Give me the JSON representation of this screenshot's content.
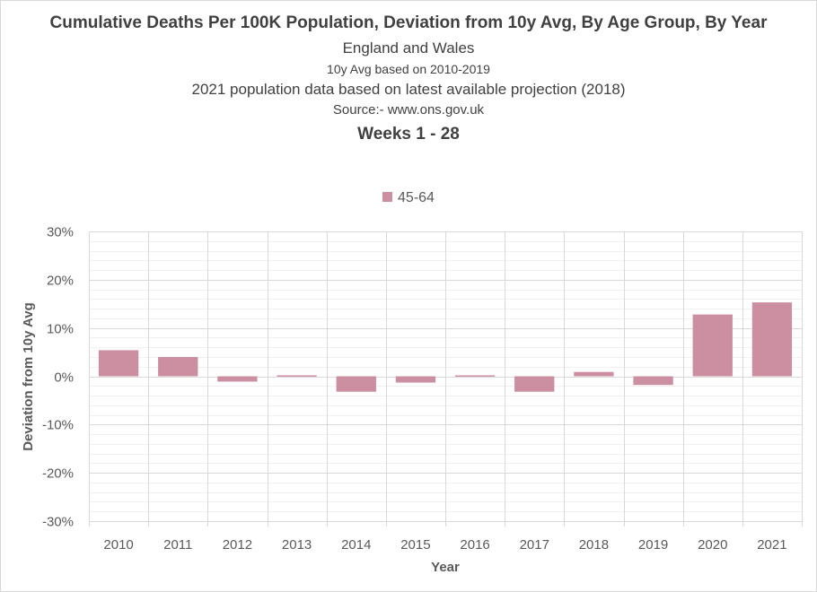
{
  "chart_data": {
    "type": "bar",
    "title": "Cumulative Deaths Per 100K Population, Deviation from 10y Avg, By Age Group, By Year",
    "subtitles": [
      "England and Wales",
      "10y Avg based on 2010-2019",
      "2021 population data based on latest available projection (2018)",
      "Source:- www.ons.gov.uk"
    ],
    "period": "Weeks 1 - 28",
    "xlabel": "Year",
    "ylabel": "Deviation from 10y Avg",
    "categories": [
      "2010",
      "2011",
      "2012",
      "2013",
      "2014",
      "2015",
      "2016",
      "2017",
      "2018",
      "2019",
      "2020",
      "2021"
    ],
    "series": [
      {
        "name": "45-64",
        "color": "#cc8fa1",
        "values": [
          5.4,
          4.0,
          -1.1,
          0.2,
          -3.2,
          -1.3,
          0.2,
          -3.2,
          0.9,
          -1.8,
          12.8,
          15.3
        ]
      }
    ],
    "ylim": [
      -30,
      30
    ],
    "yticks": [
      "30%",
      "20%",
      "10%",
      "0%",
      "-10%",
      "-20%",
      "-30%"
    ],
    "ytick_values": [
      30,
      20,
      10,
      0,
      -10,
      -20,
      -30
    ],
    "minor_grid_step": 2,
    "grid": true,
    "legend_position": "top"
  }
}
